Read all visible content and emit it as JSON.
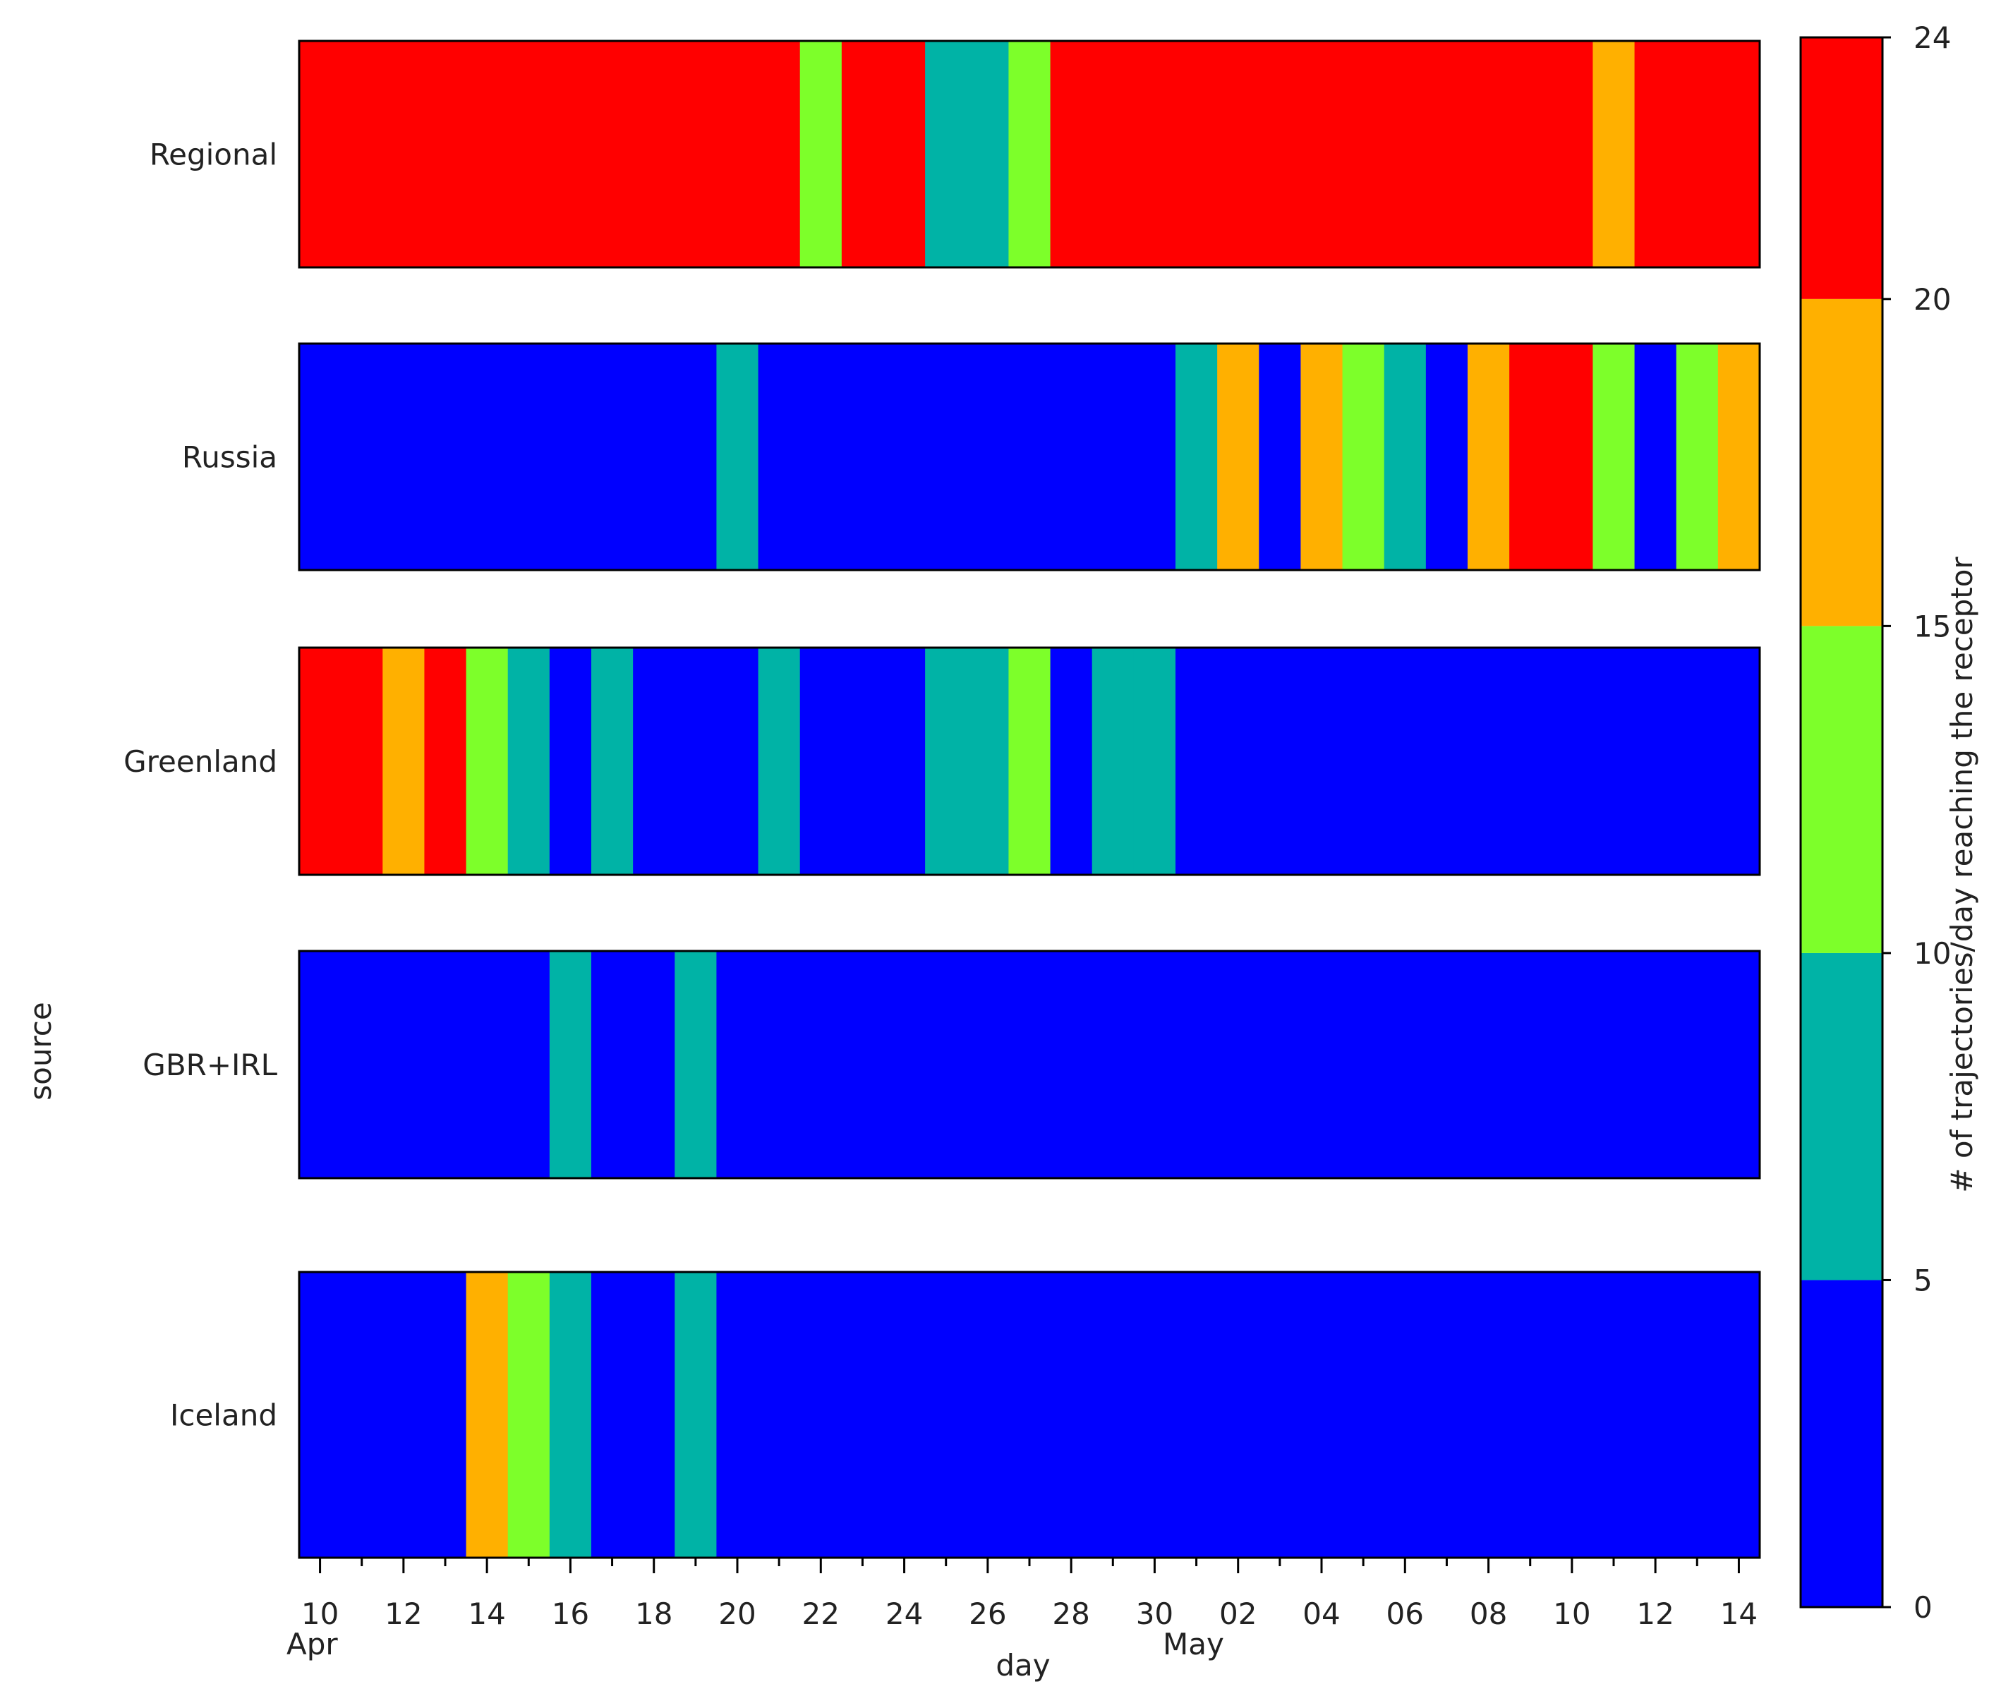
{
  "chart_data": {
    "type": "heatmap",
    "title": "",
    "xlabel": "day",
    "ylabel": "source",
    "x_start": "Apr 10",
    "days": 35,
    "x_tick_labels": [
      "10",
      "12",
      "14",
      "16",
      "18",
      "20",
      "22",
      "24",
      "26",
      "28",
      "30",
      "02",
      "04",
      "06",
      "08",
      "10",
      "12",
      "14"
    ],
    "month_labels": [
      "Apr",
      "May"
    ],
    "rows": [
      {
        "name": "Regional",
        "values": [
          4,
          4,
          4,
          4,
          4,
          4,
          4,
          4,
          4,
          4,
          4,
          4,
          2,
          4,
          4,
          1,
          1,
          2,
          4,
          4,
          4,
          4,
          4,
          4,
          4,
          4,
          4,
          4,
          4,
          4,
          4,
          3,
          4,
          4,
          4
        ]
      },
      {
        "name": "Russia",
        "values": [
          0,
          0,
          0,
          0,
          0,
          0,
          0,
          0,
          0,
          0,
          1,
          0,
          0,
          0,
          0,
          0,
          0,
          0,
          0,
          0,
          0,
          1,
          3,
          0,
          3,
          2,
          1,
          0,
          3,
          4,
          4,
          2,
          0,
          2,
          3
        ]
      },
      {
        "name": "Greenland",
        "values": [
          4,
          4,
          3,
          4,
          2,
          1,
          0,
          1,
          0,
          0,
          0,
          1,
          0,
          0,
          0,
          1,
          1,
          2,
          0,
          1,
          1,
          0,
          0,
          0,
          0,
          0,
          0,
          0,
          0,
          0,
          0,
          0,
          0,
          0,
          0
        ]
      },
      {
        "name": "GBR+IRL",
        "values": [
          0,
          0,
          0,
          0,
          0,
          0,
          1,
          0,
          0,
          1,
          0,
          0,
          0,
          0,
          0,
          0,
          0,
          0,
          0,
          0,
          0,
          0,
          0,
          0,
          0,
          0,
          0,
          0,
          0,
          0,
          0,
          0,
          0,
          0,
          0
        ]
      },
      {
        "name": "Iceland",
        "values": [
          0,
          0,
          0,
          0,
          3,
          2,
          1,
          0,
          0,
          1,
          0,
          0,
          0,
          0,
          0,
          0,
          0,
          0,
          0,
          0,
          0,
          0,
          0,
          0,
          0,
          0,
          0,
          0,
          0,
          0,
          0,
          0,
          0,
          0,
          0
        ]
      }
    ],
    "colorbar": {
      "label": "# of trajectories/day reaching the receptor",
      "bins": [
        {
          "range": [
            0,
            5
          ],
          "color": "#0000ff"
        },
        {
          "range": [
            5,
            10
          ],
          "color": "#00b3a6"
        },
        {
          "range": [
            10,
            15
          ],
          "color": "#7dff2a"
        },
        {
          "range": [
            15,
            20
          ],
          "color": "#ffb000"
        },
        {
          "range": [
            20,
            24
          ],
          "color": "#ff0000"
        }
      ],
      "tick_labels": [
        "0",
        "5",
        "10",
        "15",
        "20",
        "24"
      ],
      "range": [
        0,
        24
      ]
    }
  }
}
